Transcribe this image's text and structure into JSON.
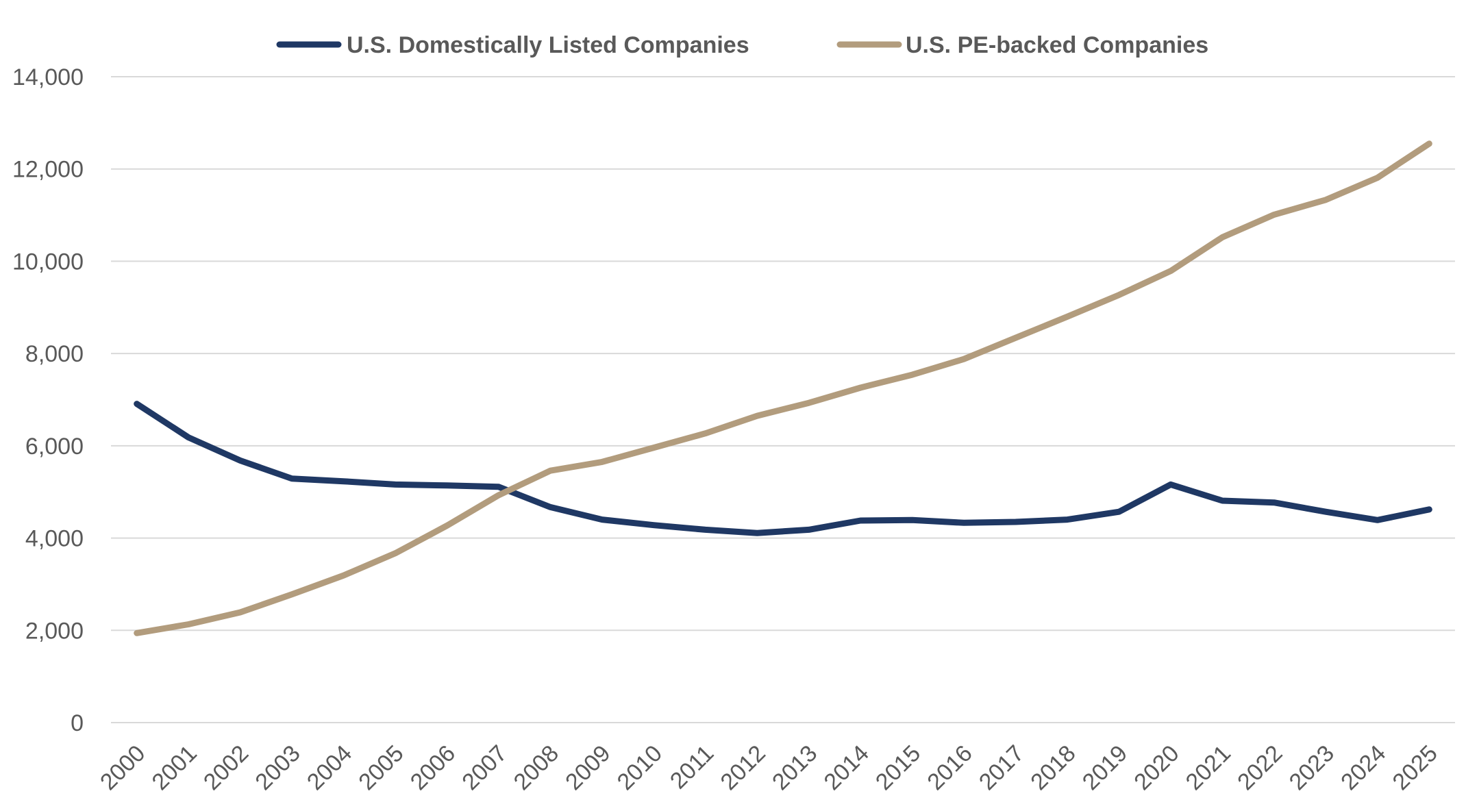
{
  "chart_data": {
    "type": "line",
    "title": "",
    "xlabel": "",
    "ylabel": "",
    "ylim": [
      0,
      14000
    ],
    "y_ticks": [
      0,
      2000,
      4000,
      6000,
      8000,
      10000,
      12000,
      14000
    ],
    "y_tick_labels": [
      "0",
      "2,000",
      "4,000",
      "6,000",
      "8,000",
      "10,000",
      "12,000",
      "14,000"
    ],
    "grid": "horizontal",
    "legend_position": "top-center",
    "x_tick_rotation": "diagonal",
    "categories": [
      "2000",
      "2001",
      "2002",
      "2003",
      "2004",
      "2005",
      "2006",
      "2007",
      "2008",
      "2009",
      "2010",
      "2011",
      "2012",
      "2013",
      "2014",
      "2015",
      "2016",
      "2017",
      "2018",
      "2019",
      "2020",
      "2021",
      "2022",
      "2023",
      "2024",
      "2025"
    ],
    "series": [
      {
        "name": "U.S. Domestically Listed Companies",
        "color": "#1f3864",
        "values": [
          6910,
          6180,
          5680,
          5290,
          5230,
          5160,
          5140,
          5110,
          4670,
          4400,
          4280,
          4180,
          4110,
          4180,
          4380,
          4390,
          4330,
          4350,
          4400,
          4570,
          5160,
          4810,
          4770,
          4570,
          4390,
          4620
        ]
      },
      {
        "name": "U.S. PE-backed Companies",
        "color": "#b29c7d",
        "values": [
          1940,
          2130,
          2390,
          2780,
          3190,
          3670,
          4270,
          4930,
          5460,
          5650,
          5960,
          6270,
          6650,
          6930,
          7260,
          7540,
          7880,
          8340,
          8800,
          9270,
          9790,
          10520,
          11010,
          11330,
          11810,
          12550
        ]
      }
    ]
  }
}
